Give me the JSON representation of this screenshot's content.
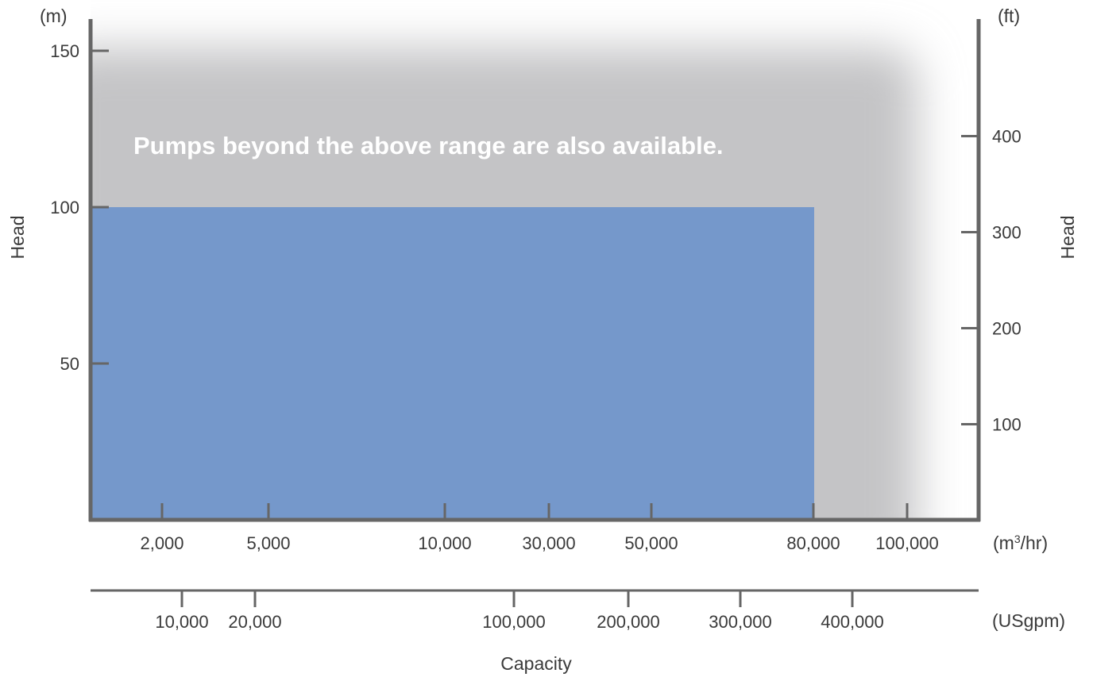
{
  "chart_data": {
    "type": "area",
    "annotation": "Pumps beyond the above range are also available.",
    "range": {
      "head_max_m": 100,
      "capacity_max_m3hr": 80000,
      "color": "#7598cb"
    },
    "extended_range_color": "#c4c4c6",
    "axes": {
      "y_left": {
        "label": "Head",
        "unit": "(m)",
        "ticks": [
          {
            "value": 150,
            "label": "150"
          },
          {
            "value": 100,
            "label": "100"
          },
          {
            "value": 50,
            "label": "50"
          }
        ]
      },
      "y_right": {
        "label": "Head",
        "unit": "(ft)",
        "ticks": [
          {
            "value": 400,
            "label": "400"
          },
          {
            "value": 300,
            "label": "300"
          },
          {
            "value": 200,
            "label": "200"
          },
          {
            "value": 100,
            "label": "100"
          }
        ]
      },
      "x_primary": {
        "unit": "(m3/hr)",
        "ticks": [
          {
            "value": 2000,
            "label": "2,000"
          },
          {
            "value": 5000,
            "label": "5,000"
          },
          {
            "value": 10000,
            "label": "10,000"
          },
          {
            "value": 30000,
            "label": "30,000"
          },
          {
            "value": 50000,
            "label": "50,000"
          },
          {
            "value": 80000,
            "label": "80,000"
          },
          {
            "value": 100000,
            "label": "100,000"
          }
        ]
      },
      "x_secondary": {
        "unit": "(USgpm)",
        "ticks": [
          {
            "value": 10000,
            "label": "10,000"
          },
          {
            "value": 20000,
            "label": "20,000"
          },
          {
            "value": 100000,
            "label": "100,000"
          },
          {
            "value": 200000,
            "label": "200,000"
          },
          {
            "value": 300000,
            "label": "300,000"
          },
          {
            "value": 400000,
            "label": "400,000"
          }
        ]
      },
      "x_label": "Capacity"
    },
    "axis_color": "#666666"
  }
}
